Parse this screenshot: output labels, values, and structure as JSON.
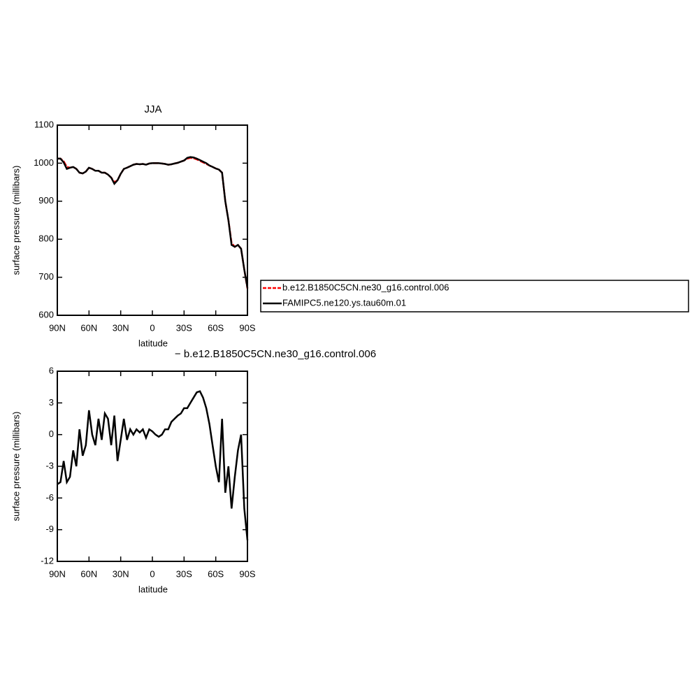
{
  "chart_data": [
    {
      "type": "line",
      "title": "JJA",
      "xlabel": "latitude",
      "ylabel": "surface pressure (millibars)",
      "x": [
        90,
        87,
        84,
        81,
        78,
        75,
        72,
        69,
        66,
        63,
        60,
        57,
        54,
        51,
        48,
        45,
        42,
        39,
        36,
        33,
        30,
        27,
        24,
        21,
        18,
        15,
        12,
        9,
        6,
        3,
        0,
        -3,
        -6,
        -9,
        -12,
        -15,
        -18,
        -21,
        -24,
        -27,
        -30,
        -33,
        -36,
        -39,
        -42,
        -45,
        -48,
        -51,
        -54,
        -57,
        -60,
        -63,
        -66,
        -69,
        -72,
        -75,
        -78,
        -81,
        -84,
        -87,
        -90
      ],
      "series": [
        {
          "name": "b.e12.B1850C5CN.ne30_g16.control.006",
          "color": "#ff0000",
          "dashed": true,
          "values": [
            1012,
            1012,
            1005,
            990,
            988,
            990,
            985,
            975,
            973,
            978,
            988,
            985,
            980,
            980,
            975,
            975,
            970,
            962,
            950,
            955,
            972,
            985,
            988,
            992,
            996,
            998,
            997,
            998,
            996,
            999,
            1000,
            1000,
            1000,
            999,
            998,
            996,
            997,
            999,
            1001,
            1004,
            1007,
            1012,
            1014,
            1013,
            1010,
            1006,
            1002,
            998,
            994,
            990,
            986,
            983,
            975,
            900,
            850,
            790,
            780,
            785,
            775,
            720,
            670
          ]
        },
        {
          "name": "FAMIPC5.ne120.ys.tau60m.01",
          "color": "#000000",
          "dashed": false,
          "values": [
            1012,
            1012,
            1002,
            985,
            988,
            990,
            985,
            975,
            973,
            978,
            988,
            985,
            980,
            980,
            975,
            975,
            970,
            962,
            946,
            955,
            972,
            985,
            988,
            992,
            996,
            998,
            997,
            998,
            996,
            999,
            1000,
            1000,
            1000,
            999,
            998,
            996,
            997,
            999,
            1001,
            1004,
            1007,
            1014,
            1016,
            1015,
            1012,
            1008,
            1004,
            1000,
            994,
            990,
            986,
            983,
            975,
            900,
            850,
            785,
            780,
            785,
            775,
            720,
            672
          ]
        }
      ],
      "xlim": [
        90,
        -90
      ],
      "xticks": [
        {
          "value": 90,
          "label": "90N"
        },
        {
          "value": 60,
          "label": "60N"
        },
        {
          "value": 30,
          "label": "30N"
        },
        0,
        {
          "value": -30,
          "label": "30S"
        },
        {
          "value": -60,
          "label": "60S"
        },
        {
          "value": -90,
          "label": "90S"
        }
      ],
      "ylim": [
        600,
        1100
      ],
      "yticks": [
        600,
        700,
        800,
        900,
        1000,
        1100
      ]
    },
    {
      "type": "line",
      "title": "− b.e12.B1850C5CN.ne30_g16.control.006",
      "xlabel": "latitude",
      "ylabel": "surface pressure (millibars)",
      "x": [
        90,
        87,
        84,
        81,
        78,
        75,
        72,
        69,
        66,
        63,
        60,
        57,
        54,
        51,
        48,
        45,
        42,
        39,
        36,
        33,
        30,
        27,
        24,
        21,
        18,
        15,
        12,
        9,
        6,
        3,
        0,
        -3,
        -6,
        -9,
        -12,
        -15,
        -18,
        -21,
        -24,
        -27,
        -30,
        -33,
        -36,
        -39,
        -42,
        -45,
        -48,
        -51,
        -54,
        -57,
        -60,
        -63,
        -66,
        -69,
        -72,
        -75,
        -78,
        -81,
        -84,
        -87,
        -90
      ],
      "color": "#000000",
      "values": [
        -4.7,
        -4.5,
        -2.5,
        -4.5,
        -4,
        -1.5,
        -3,
        0.5,
        -2,
        -1,
        2.3,
        0,
        -1,
        1.5,
        -0.5,
        2,
        1.5,
        -1,
        1.8,
        -2.5,
        -0.5,
        1.5,
        -0.5,
        0.5,
        0,
        0.5,
        0.2,
        0.5,
        -0.3,
        0.5,
        0.3,
        0,
        -0.2,
        0,
        0.5,
        0.5,
        1.2,
        1.5,
        1.8,
        2,
        2.5,
        2.5,
        3,
        3.5,
        4,
        4.1,
        3.5,
        2.5,
        1,
        -1,
        -3,
        -4.5,
        1.5,
        -5.5,
        -3,
        -7,
        -4,
        -1.5,
        0,
        -7,
        -10
      ],
      "xlim": [
        90,
        -90
      ],
      "xticks": [
        {
          "value": 90,
          "label": "90N"
        },
        {
          "value": 60,
          "label": "60N"
        },
        {
          "value": 30,
          "label": "30N"
        },
        0,
        {
          "value": -30,
          "label": "30S"
        },
        {
          "value": -60,
          "label": "60S"
        },
        {
          "value": -90,
          "label": "90S"
        }
      ],
      "ylim": [
        -12,
        6
      ],
      "yticks": [
        -12,
        -9,
        -6,
        -3,
        0,
        3,
        6
      ]
    }
  ]
}
